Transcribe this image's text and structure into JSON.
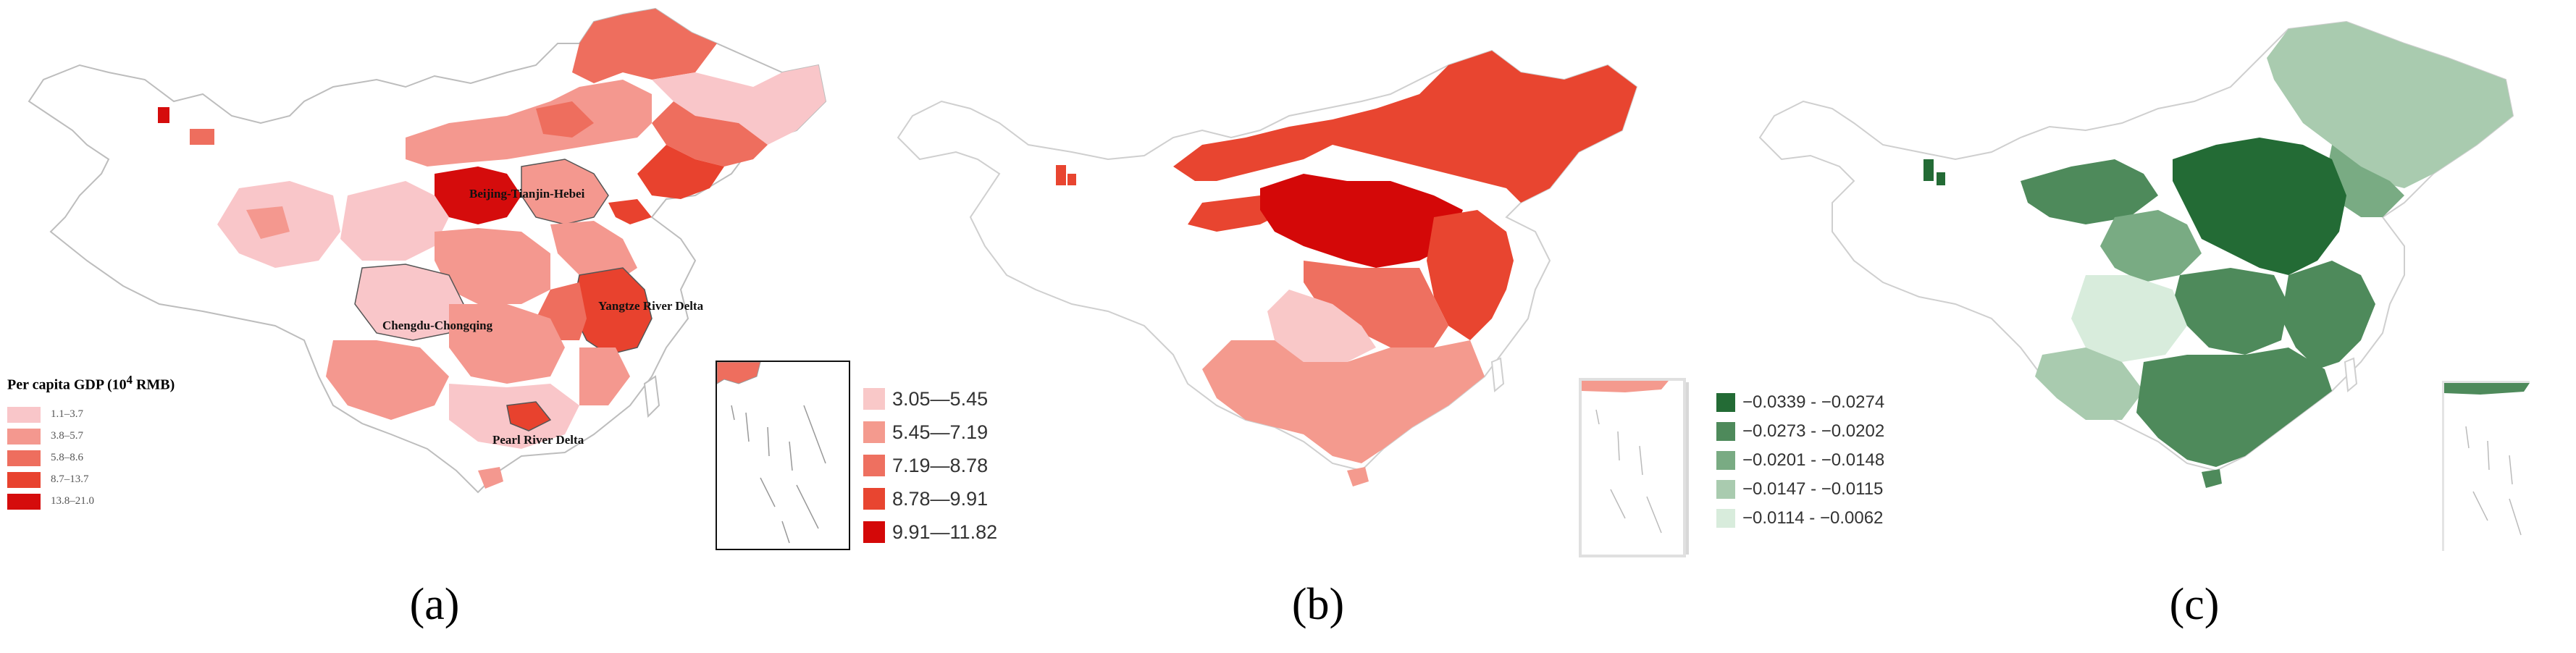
{
  "panels": [
    {
      "label": "(a)",
      "legend_title": "Per capita GDP (10",
      "legend_title_sup": "4",
      "legend_title_end": " RMB)",
      "classes": [
        {
          "label": "1.1–3.7",
          "color": "#f9c6c9"
        },
        {
          "label": "3.8–5.7",
          "color": "#f4988f"
        },
        {
          "label": "5.8–8.6",
          "color": "#ee6e5e"
        },
        {
          "label": "8.7–13.7",
          "color": "#e8422e"
        },
        {
          "label": "13.8–21.0",
          "color": "#d50c0c"
        }
      ],
      "region_labels": [
        "Beijing-Tianjin-Hebei",
        "Yangtze River Delta",
        "Chengdu-Chongqing",
        "Pearl River Delta"
      ]
    },
    {
      "label": "(b)",
      "classes": [
        {
          "label": "3.05—5.45",
          "color": "#f9c8c8"
        },
        {
          "label": "5.45—7.19",
          "color": "#f49a8e"
        },
        {
          "label": "7.19—8.78",
          "color": "#ee7060"
        },
        {
          "label": "8.78—9.91",
          "color": "#e84530"
        },
        {
          "label": "9.91—11.82",
          "color": "#d40808"
        }
      ]
    },
    {
      "label": "(c)",
      "classes": [
        {
          "label": "−0.0339 - −0.0274",
          "color": "#236b35"
        },
        {
          "label": "−0.0273 - −0.0202",
          "color": "#4e8a5b"
        },
        {
          "label": "−0.0201 - −0.0148",
          "color": "#79ab83"
        },
        {
          "label": "−0.0147 - −0.0115",
          "color": "#a9cbaf"
        },
        {
          "label": "−0.0114 - −0.0062",
          "color": "#d8ecdc"
        }
      ]
    }
  ]
}
